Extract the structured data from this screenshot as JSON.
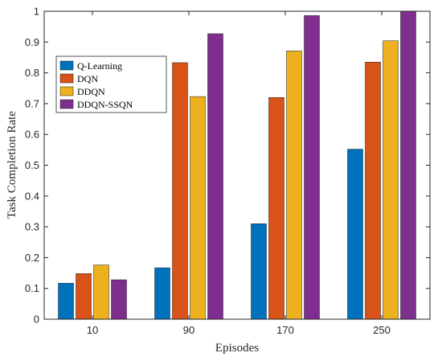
{
  "chart_data": {
    "type": "bar",
    "title": "",
    "xlabel": "Episodes",
    "ylabel": "Task Completion Rate",
    "categories": [
      "10",
      "90",
      "170",
      "250"
    ],
    "ylim": [
      0,
      1
    ],
    "yticks": [
      "0",
      "0.1",
      "0.2",
      "0.3",
      "0.4",
      "0.5",
      "0.6",
      "0.7",
      "0.8",
      "0.9",
      "1"
    ],
    "grid": false,
    "legend_position": "top-left",
    "series": [
      {
        "name": "Q-Learning",
        "color": "#0072BD",
        "values": [
          0.117,
          0.167,
          0.31,
          0.552
        ]
      },
      {
        "name": "DQN",
        "color": "#D95319",
        "values": [
          0.148,
          0.833,
          0.72,
          0.835
        ]
      },
      {
        "name": "DDQN",
        "color": "#EDB120",
        "values": [
          0.176,
          0.723,
          0.871,
          0.904
        ]
      },
      {
        "name": "DDQN-SSQN",
        "color": "#7E2F8E",
        "values": [
          0.128,
          0.927,
          0.986,
          1.0
        ]
      }
    ]
  }
}
